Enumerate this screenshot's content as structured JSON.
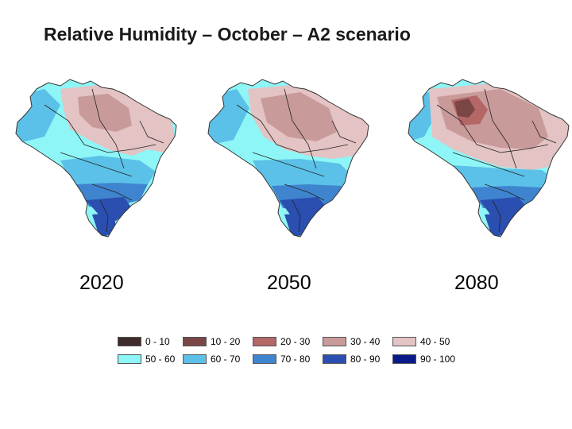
{
  "title": "Relative Humidity – October – A2 scenario",
  "panels": [
    {
      "year": "2020"
    },
    {
      "year": "2050"
    },
    {
      "year": "2080"
    }
  ],
  "legend": [
    {
      "label": "0 - 10",
      "color": "#3f2b2b"
    },
    {
      "label": "10 - 20",
      "color": "#7a4646"
    },
    {
      "label": "20 - 30",
      "color": "#b56666"
    },
    {
      "label": "30 - 40",
      "color": "#c99a9a"
    },
    {
      "label": "40 - 50",
      "color": "#e3c3c3"
    },
    {
      "label": "50 - 60",
      "color": "#8ef6f6"
    },
    {
      "label": "60 - 70",
      "color": "#5cc1e8"
    },
    {
      "label": "70 - 80",
      "color": "#3f84cf"
    },
    {
      "label": "80 - 90",
      "color": "#2a4fb0"
    },
    {
      "label": "90 - 100",
      "color": "#0a1a8a"
    }
  ]
}
